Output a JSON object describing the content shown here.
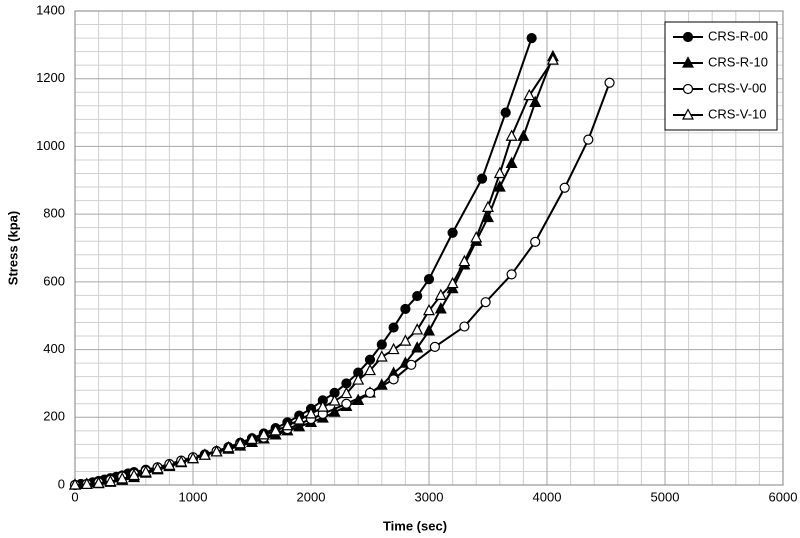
{
  "chart_data": {
    "type": "line",
    "xlabel": "Time (sec)",
    "ylabel": "Stress (kpa)",
    "xlim": [
      0,
      6000
    ],
    "xticks": [
      0,
      1000,
      2000,
      3000,
      4000,
      5000,
      6000
    ],
    "ylim": [
      0,
      1400
    ],
    "yticks": [
      0,
      200,
      400,
      600,
      800,
      1000,
      1200,
      1400
    ],
    "grid": true,
    "legend": "upper right",
    "series": [
      {
        "name": "CRS-R-00",
        "color": "#000000",
        "marker": "circle",
        "filled": true,
        "x": [
          0,
          50,
          150,
          200,
          250,
          300,
          350,
          400,
          450,
          500,
          600,
          700,
          800,
          900,
          1000,
          1100,
          1200,
          1300,
          1400,
          1500,
          1600,
          1700,
          1800,
          1900,
          2000,
          2100,
          2200,
          2300,
          2400,
          2500,
          2600,
          2700,
          2800,
          2900,
          3000,
          3200,
          3450,
          3650,
          3870
        ],
        "values": [
          0,
          3,
          8,
          12,
          16,
          20,
          24,
          28,
          34,
          38,
          45,
          52,
          60,
          70,
          80,
          90,
          100,
          112,
          125,
          138,
          152,
          168,
          185,
          205,
          225,
          250,
          272,
          300,
          332,
          370,
          415,
          465,
          520,
          558,
          608,
          745,
          905,
          1100,
          1320
        ]
      },
      {
        "name": "CRS-R-10",
        "color": "#000000",
        "marker": "triangle",
        "filled": true,
        "x": [
          0,
          100,
          200,
          300,
          400,
          500,
          600,
          700,
          800,
          900,
          1000,
          1100,
          1200,
          1300,
          1400,
          1500,
          1600,
          1700,
          1800,
          1900,
          2000,
          2100,
          2200,
          2300,
          2400,
          2500,
          2600,
          2700,
          2800,
          2900,
          3000,
          3100,
          3200,
          3300,
          3400,
          3500,
          3600,
          3700,
          3800,
          3900,
          4050
        ],
        "values": [
          0,
          2,
          4,
          8,
          14,
          22,
          35,
          45,
          55,
          66,
          78,
          88,
          98,
          106,
          115,
          126,
          136,
          148,
          160,
          172,
          185,
          198,
          215,
          232,
          250,
          272,
          295,
          330,
          360,
          405,
          455,
          520,
          580,
          650,
          720,
          790,
          880,
          950,
          1030,
          1130,
          1265
        ]
      },
      {
        "name": "CRS-V-00",
        "color": "#000000",
        "marker": "circle",
        "filled": false,
        "x": [
          0,
          100,
          200,
          300,
          400,
          500,
          600,
          700,
          800,
          900,
          1000,
          1200,
          1400,
          1600,
          1800,
          2000,
          2100,
          2300,
          2500,
          2700,
          2850,
          3050,
          3300,
          3480,
          3700,
          3900,
          4150,
          4350,
          4530
        ],
        "values": [
          0,
          3,
          8,
          15,
          25,
          33,
          42,
          52,
          62,
          72,
          82,
          100,
          120,
          140,
          165,
          195,
          210,
          240,
          272,
          312,
          355,
          408,
          468,
          540,
          622,
          718,
          878,
          1020,
          1188
        ]
      },
      {
        "name": "CRS-V-10",
        "color": "#000000",
        "marker": "triangle",
        "filled": false,
        "x": [
          0,
          100,
          200,
          300,
          400,
          500,
          600,
          700,
          800,
          900,
          1000,
          1100,
          1200,
          1300,
          1400,
          1500,
          1600,
          1700,
          1800,
          1900,
          2000,
          2100,
          2200,
          2300,
          2400,
          2500,
          2600,
          2700,
          2800,
          2900,
          3000,
          3100,
          3200,
          3300,
          3400,
          3500,
          3600,
          3700,
          3850,
          4050
        ],
        "values": [
          0,
          2,
          5,
          10,
          18,
          28,
          38,
          48,
          58,
          68,
          78,
          88,
          98,
          110,
          122,
          135,
          148,
          160,
          175,
          192,
          210,
          230,
          248,
          270,
          310,
          338,
          378,
          400,
          425,
          458,
          515,
          560,
          595,
          660,
          730,
          820,
          920,
          1030,
          1150,
          1255
        ]
      }
    ]
  }
}
